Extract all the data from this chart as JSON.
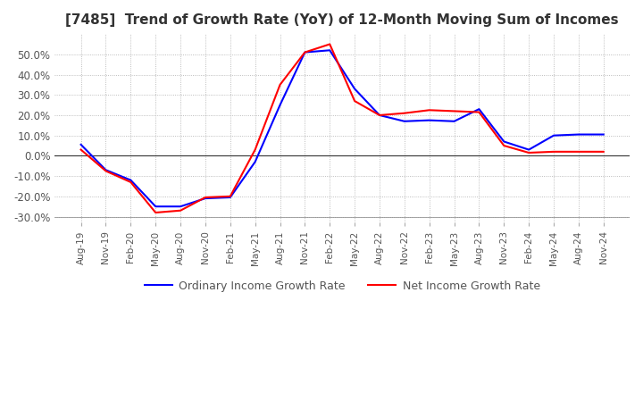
{
  "title": "[7485]  Trend of Growth Rate (YoY) of 12-Month Moving Sum of Incomes",
  "title_fontsize": 11,
  "ylim": [
    -33,
    60
  ],
  "yticks": [
    -30,
    -20,
    -10,
    0,
    10,
    20,
    30,
    40,
    50
  ],
  "ytick_labels": [
    "-30.0%",
    "-20.0%",
    "-10.0%",
    "0.0%",
    "10.0%",
    "20.0%",
    "30.0%",
    "40.0%",
    "50.0%"
  ],
  "background_color": "#ffffff",
  "grid_color": "#aaaaaa",
  "legend_labels": [
    "Ordinary Income Growth Rate",
    "Net Income Growth Rate"
  ],
  "legend_colors": [
    "#0000ff",
    "#ff0000"
  ],
  "x_labels": [
    "Aug-19",
    "Nov-19",
    "Feb-20",
    "May-20",
    "Aug-20",
    "Nov-20",
    "Feb-21",
    "May-21",
    "Aug-21",
    "Nov-21",
    "Feb-22",
    "May-22",
    "Aug-22",
    "Nov-22",
    "Feb-23",
    "May-23",
    "Aug-23",
    "Nov-23",
    "Feb-24",
    "May-24",
    "Aug-24",
    "Nov-24"
  ],
  "ordinary_income": [
    5.5,
    -7.0,
    -12.0,
    -25.0,
    -25.0,
    -21.0,
    -20.5,
    -3.0,
    25.0,
    51.0,
    52.0,
    33.0,
    20.0,
    17.0,
    17.5,
    17.0,
    23.0,
    7.0,
    3.0,
    10.0,
    10.5,
    10.5
  ],
  "net_income": [
    3.0,
    -7.5,
    -13.0,
    -28.0,
    -27.0,
    -20.5,
    -20.0,
    3.0,
    35.0,
    51.0,
    55.0,
    27.0,
    20.0,
    21.0,
    22.5,
    22.0,
    21.5,
    5.0,
    1.5,
    2.0,
    2.0,
    2.0
  ]
}
